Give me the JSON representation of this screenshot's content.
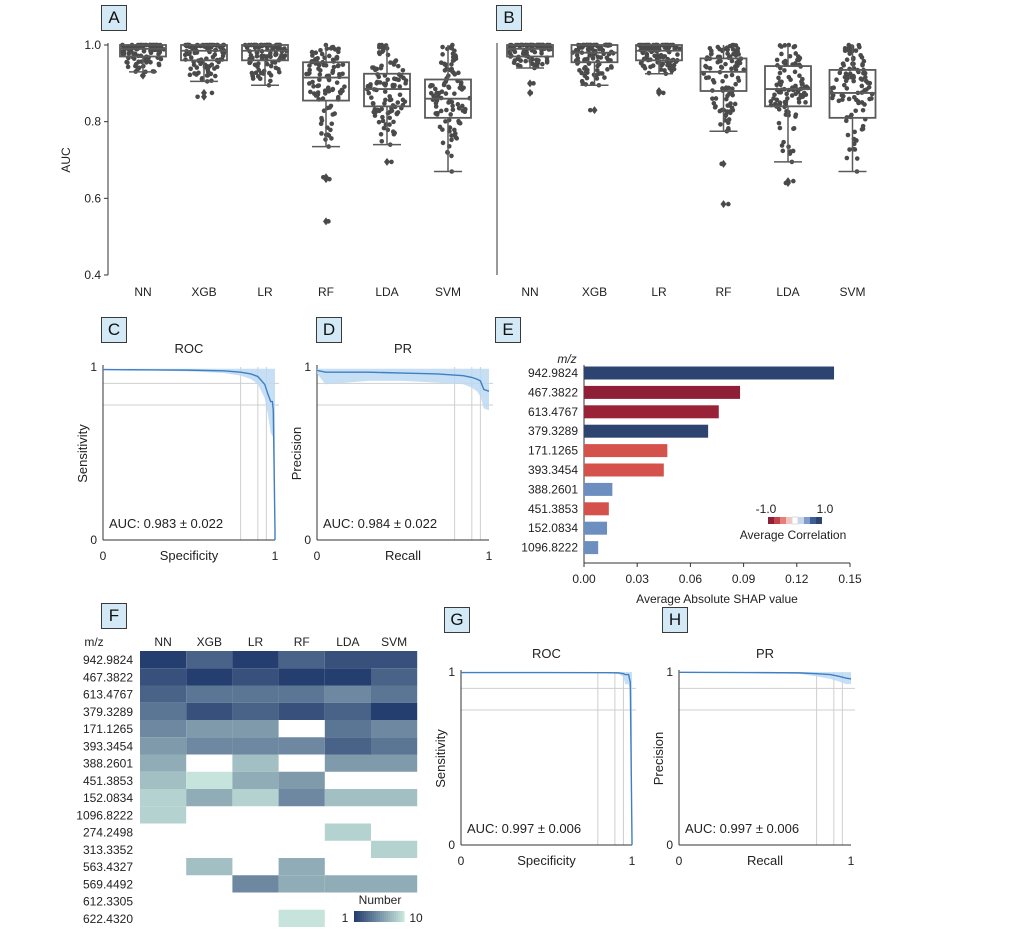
{
  "panels": {
    "A": "A",
    "B": "B",
    "C": "C",
    "D": "D",
    "E": "E",
    "F": "F",
    "G": "G",
    "H": "H"
  },
  "chart_data": [
    {
      "panel": "A",
      "type": "box",
      "ylabel": "AUC",
      "ylim": [
        0.4,
        1.0
      ],
      "yticks": [
        "0.4",
        "0.6",
        "0.8",
        "1.0"
      ],
      "categories": [
        "NN",
        "XGB",
        "LR",
        "RF",
        "LDA",
        "SVM"
      ],
      "boxes": [
        {
          "min": 0.93,
          "q1": 0.97,
          "median": 0.99,
          "q3": 1.0,
          "max": 1.0,
          "outliers": [
            0.92
          ]
        },
        {
          "min": 0.905,
          "q1": 0.96,
          "median": 0.985,
          "q3": 1.0,
          "max": 1.0,
          "outliers": [
            0.865,
            0.875
          ]
        },
        {
          "min": 0.895,
          "q1": 0.96,
          "median": 0.985,
          "q3": 1.0,
          "max": 1.0,
          "outliers": []
        },
        {
          "min": 0.735,
          "q1": 0.855,
          "median": 0.915,
          "q3": 0.955,
          "max": 1.0,
          "outliers": [
            0.655,
            0.65,
            0.54
          ]
        },
        {
          "min": 0.74,
          "q1": 0.84,
          "median": 0.885,
          "q3": 0.925,
          "max": 1.0,
          "outliers": [
            0.695
          ]
        },
        {
          "min": 0.67,
          "q1": 0.81,
          "median": 0.86,
          "q3": 0.91,
          "max": 1.0,
          "outliers": []
        }
      ]
    },
    {
      "panel": "B",
      "type": "box",
      "ylim": [
        0.4,
        1.0
      ],
      "categories": [
        "NN",
        "XGB",
        "LR",
        "RF",
        "LDA",
        "SVM"
      ],
      "boxes": [
        {
          "min": 0.94,
          "q1": 0.97,
          "median": 0.99,
          "q3": 1.0,
          "max": 1.0,
          "outliers": [
            0.875,
            0.9
          ]
        },
        {
          "min": 0.895,
          "q1": 0.955,
          "median": 0.98,
          "q3": 1.0,
          "max": 1.0,
          "outliers": [
            0.83
          ]
        },
        {
          "min": 0.925,
          "q1": 0.96,
          "median": 0.985,
          "q3": 1.0,
          "max": 1.0,
          "outliers": [
            0.875,
            0.88
          ]
        },
        {
          "min": 0.775,
          "q1": 0.88,
          "median": 0.93,
          "q3": 0.965,
          "max": 1.0,
          "outliers": [
            0.69,
            0.585
          ]
        },
        {
          "min": 0.695,
          "q1": 0.84,
          "median": 0.885,
          "q3": 0.945,
          "max": 1.0,
          "outliers": [
            0.645,
            0.64
          ]
        },
        {
          "min": 0.67,
          "q1": 0.81,
          "median": 0.875,
          "q3": 0.935,
          "max": 1.0,
          "outliers": []
        }
      ]
    },
    {
      "panel": "C",
      "type": "line",
      "title": "ROC",
      "xlabel": "Specificity",
      "ylabel": "Sensitivity",
      "annotation": "AUC: 0.983 ± 0.022",
      "xticks": [
        "0",
        "1"
      ],
      "yticks": [
        "0",
        "1"
      ],
      "x": [
        0,
        0.3,
        0.5,
        0.7,
        0.8,
        0.86,
        0.9,
        0.94,
        0.96,
        0.975,
        0.985,
        0.99,
        1.0,
        1.0
      ],
      "y": [
        0.985,
        0.983,
        0.982,
        0.978,
        0.97,
        0.96,
        0.945,
        0.9,
        0.84,
        0.8,
        0.8,
        0.75,
        0.05,
        0
      ],
      "band_low": [
        0.985,
        0.98,
        0.975,
        0.965,
        0.95,
        0.93,
        0.9,
        0.82,
        0.72,
        0.62,
        0.6,
        0.6,
        0.05,
        0
      ],
      "band_high": [
        0.99,
        0.99,
        0.99,
        0.99,
        0.99,
        0.99,
        0.99,
        0.99,
        0.99,
        0.99,
        0.99,
        0.99,
        0.99,
        0.99
      ]
    },
    {
      "panel": "D",
      "type": "line",
      "title": "PR",
      "xlabel": "Recall",
      "ylabel": "Precision",
      "annotation": "AUC: 0.984 ± 0.022",
      "xticks": [
        "0",
        "1"
      ],
      "yticks": [
        "0",
        "1"
      ],
      "x": [
        0,
        0.05,
        0.3,
        0.5,
        0.7,
        0.85,
        0.9,
        0.93,
        0.95,
        0.97,
        1.0
      ],
      "y": [
        0.98,
        0.97,
        0.97,
        0.965,
        0.96,
        0.95,
        0.94,
        0.93,
        0.92,
        0.87,
        0.86
      ],
      "band_low": [
        0.96,
        0.9,
        0.92,
        0.92,
        0.91,
        0.9,
        0.88,
        0.86,
        0.83,
        0.76,
        0.75
      ],
      "band_high": [
        0.99,
        0.99,
        0.99,
        0.99,
        0.99,
        0.99,
        0.99,
        0.99,
        0.99,
        0.99,
        0.99
      ]
    },
    {
      "panel": "E",
      "type": "bar",
      "orientation": "horizontal",
      "xlabel": "Average Absolute SHAP value",
      "ylabel": "m/z",
      "xticks": [
        "0.00",
        "0.03",
        "0.06",
        "0.09",
        "0.12",
        "0.15"
      ],
      "xlim": [
        0,
        0.15
      ],
      "categories": [
        "942.9824",
        "467.3822",
        "613.4767",
        "379.3289",
        "171.1265",
        "393.3454",
        "388.2601",
        "451.3853",
        "152.0834",
        "1096.8222"
      ],
      "values": [
        0.141,
        0.088,
        0.076,
        0.07,
        0.047,
        0.045,
        0.016,
        0.014,
        0.013,
        0.008
      ],
      "colors": [
        "#2e4470",
        "#8e1f37",
        "#9a2238",
        "#2e4470",
        "#d4514c",
        "#d4514c",
        "#6d8fc0",
        "#d4514c",
        "#6d8fc0",
        "#6d8fc0"
      ],
      "legend": {
        "title": "Average Correlation",
        "min": "-1.0",
        "max": "1.0",
        "placement": "lower-right"
      }
    },
    {
      "panel": "F",
      "type": "heatmap",
      "row_header": "m/z",
      "columns": [
        "NN",
        "XGB",
        "LR",
        "RF",
        "LDA",
        "SVM"
      ],
      "rows": [
        "942.9824",
        "467.3822",
        "613.4767",
        "379.3289",
        "171.1265",
        "393.3454",
        "388.2601",
        "451.3853",
        "152.0834",
        "1096.8222",
        "274.2498",
        "313.3352",
        "563.4327",
        "569.4492",
        "612.3305",
        "622.4320"
      ],
      "values": [
        [
          1,
          3,
          1,
          3,
          2,
          2
        ],
        [
          2,
          1,
          2,
          1,
          1,
          3
        ],
        [
          3,
          4,
          4,
          4,
          5,
          4
        ],
        [
          4,
          2,
          3,
          2,
          3,
          1
        ],
        [
          5,
          6,
          6,
          null,
          4,
          5
        ],
        [
          6,
          5,
          5,
          5,
          3,
          4
        ],
        [
          7,
          null,
          8,
          null,
          6,
          6
        ],
        [
          8,
          10,
          7,
          6,
          null,
          null
        ],
        [
          9,
          7,
          9,
          5,
          8,
          8
        ],
        [
          9,
          null,
          null,
          null,
          null,
          null
        ],
        [
          null,
          null,
          null,
          null,
          9,
          null
        ],
        [
          null,
          null,
          null,
          null,
          null,
          9
        ],
        [
          null,
          8,
          null,
          7,
          null,
          null
        ],
        [
          null,
          null,
          5,
          7,
          7,
          7
        ],
        [
          null,
          null,
          null,
          null,
          null,
          null
        ],
        [
          null,
          null,
          null,
          10,
          null,
          null
        ]
      ],
      "colorbar": {
        "title": "Number",
        "min": "1",
        "max": "10"
      }
    },
    {
      "panel": "G",
      "type": "line",
      "title": "ROC",
      "xlabel": "Specificity",
      "ylabel": "Sensitivity",
      "annotation": "AUC: 0.997 ± 0.006",
      "xticks": [
        "0",
        "1"
      ],
      "yticks": [
        "0",
        "1"
      ],
      "x": [
        0,
        0.5,
        0.85,
        0.92,
        0.95,
        0.96,
        0.98,
        0.99,
        1.0,
        1.0
      ],
      "y": [
        0.997,
        0.997,
        0.996,
        0.995,
        0.99,
        0.985,
        0.985,
        0.94,
        0.02,
        0
      ],
      "band_low": [
        0.997,
        0.997,
        0.996,
        0.99,
        0.97,
        0.93,
        0.93,
        0.9,
        0.02,
        0
      ],
      "band_high": [
        0.999,
        0.999,
        0.999,
        0.999,
        0.999,
        0.999,
        0.999,
        0.999,
        0.999,
        0.999
      ]
    },
    {
      "panel": "H",
      "type": "line",
      "title": "PR",
      "xlabel": "Recall",
      "ylabel": "Precision",
      "annotation": "AUC: 0.997 ± 0.006",
      "xticks": [
        "0",
        "1"
      ],
      "yticks": [
        "0",
        "1"
      ],
      "x": [
        0,
        0.4,
        0.7,
        0.8,
        0.88,
        0.93,
        0.97,
        1.0
      ],
      "y": [
        0.998,
        0.997,
        0.995,
        0.99,
        0.985,
        0.975,
        0.965,
        0.96
      ],
      "band_low": [
        0.997,
        0.995,
        0.99,
        0.975,
        0.96,
        0.945,
        0.93,
        0.93
      ],
      "band_high": [
        0.999,
        0.999,
        0.999,
        0.999,
        0.999,
        0.999,
        0.999,
        0.999
      ]
    }
  ]
}
